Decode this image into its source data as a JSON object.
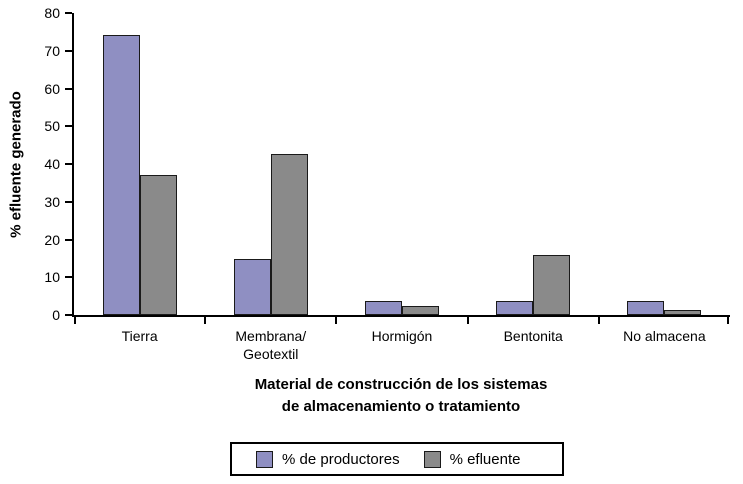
{
  "chart_data": {
    "type": "bar",
    "title": "",
    "categories": [
      "Tierra",
      "Membrana/\nGeotextil",
      "Hormigón",
      "Bentonita",
      "No almacena"
    ],
    "series": [
      {
        "name": "% de productores",
        "color": "#8F8FC2",
        "values": [
          74.1,
          14.8,
          3.7,
          3.7,
          3.7
        ]
      },
      {
        "name": "% efluente",
        "color": "#8A8A8A",
        "values": [
          37.0,
          42.6,
          2.5,
          16.0,
          1.4
        ]
      }
    ],
    "ylabel": "% efluente generado",
    "xlabel_line1": "Material de construcción de los sistemas",
    "xlabel_line2": "de almacenamiento o tratamiento",
    "ylim": [
      0,
      80
    ],
    "y_ticks": [
      0,
      10,
      20,
      30,
      40,
      50,
      60,
      70,
      80
    ],
    "grid": false,
    "legend_position": "bottom"
  },
  "colors": {
    "axis": "#000000",
    "bar_border": "#1a1a1a",
    "background": "#ffffff"
  }
}
